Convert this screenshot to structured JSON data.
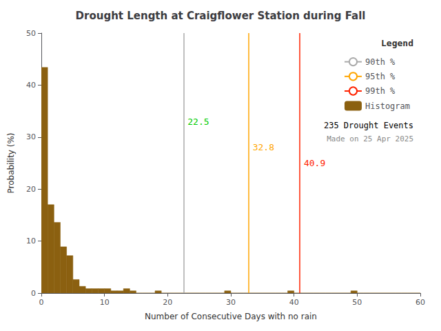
{
  "chart_data": {
    "type": "histogram",
    "title": "Drought Length at Craigflower Station during Fall",
    "xlabel": "Number of Consecutive Days with no rain",
    "ylabel": "Probability (%)",
    "xlim": [
      0,
      60
    ],
    "ylim": [
      0,
      50
    ],
    "xticks": [
      0,
      10,
      20,
      30,
      40,
      50,
      60
    ],
    "yticks": [
      0,
      10,
      20,
      30,
      40,
      50
    ],
    "grid": false,
    "legend": "upper right",
    "legend_title": "Legend",
    "bins": [
      0,
      1,
      2,
      3,
      4,
      5,
      6,
      7,
      8,
      9,
      10,
      11,
      12,
      13,
      14,
      15,
      16,
      17,
      18,
      19,
      20,
      21,
      22,
      23,
      24,
      25,
      26,
      27,
      28,
      29,
      30,
      31,
      32,
      33,
      34,
      35,
      36,
      37,
      38,
      39,
      40,
      41,
      42,
      43,
      44,
      45,
      46,
      47,
      48,
      49,
      50,
      51,
      52,
      53,
      54,
      55,
      56,
      57,
      58,
      59,
      60
    ],
    "series": [
      {
        "name": "Histogram",
        "type": "histogram",
        "color": "#8B6010",
        "values": [
          43.4,
          17.0,
          13.6,
          8.9,
          7.2,
          2.6,
          1.3,
          0.85,
          0.85,
          0.85,
          0.85,
          0.43,
          0.43,
          0.85,
          0.43,
          0.0,
          0.0,
          0.0,
          0.43,
          0.0,
          0.0,
          0.0,
          0.0,
          0.0,
          0.0,
          0.0,
          0.0,
          0.0,
          0.0,
          0.43,
          0.0,
          0.0,
          0.0,
          0.0,
          0.0,
          0.0,
          0.0,
          0.0,
          0.0,
          0.43,
          0.0,
          0.0,
          0.0,
          0.0,
          0.0,
          0.0,
          0.0,
          0.0,
          0.0,
          0.43,
          0.0,
          0.0,
          0.0,
          0.0,
          0.0,
          0.0,
          0.0,
          0.0,
          0.0,
          0.0
        ]
      }
    ],
    "vlines": [
      {
        "name": "90th %",
        "x": 22.5,
        "color": "#AAAAAA"
      },
      {
        "name": "95th %",
        "x": 32.8,
        "color": "#FFA500"
      },
      {
        "name": "99th %",
        "x": 40.9,
        "color": "#FF2200"
      }
    ],
    "legend_order": [
      "90th %",
      "95th %",
      "99th %",
      "Histogram"
    ],
    "annotations": [
      {
        "text": "22.5",
        "x": 22.5,
        "y": 33,
        "color": "#00CC00"
      },
      {
        "text": "32.8",
        "x": 32.8,
        "y": 28,
        "color": "#FFA500"
      },
      {
        "text": "40.9",
        "x": 40.9,
        "y": 25,
        "color": "#FF2200"
      },
      {
        "text": "235 Drought Events"
      },
      {
        "text": "Made on 25 Apr 2025",
        "color": "#888888"
      }
    ]
  }
}
